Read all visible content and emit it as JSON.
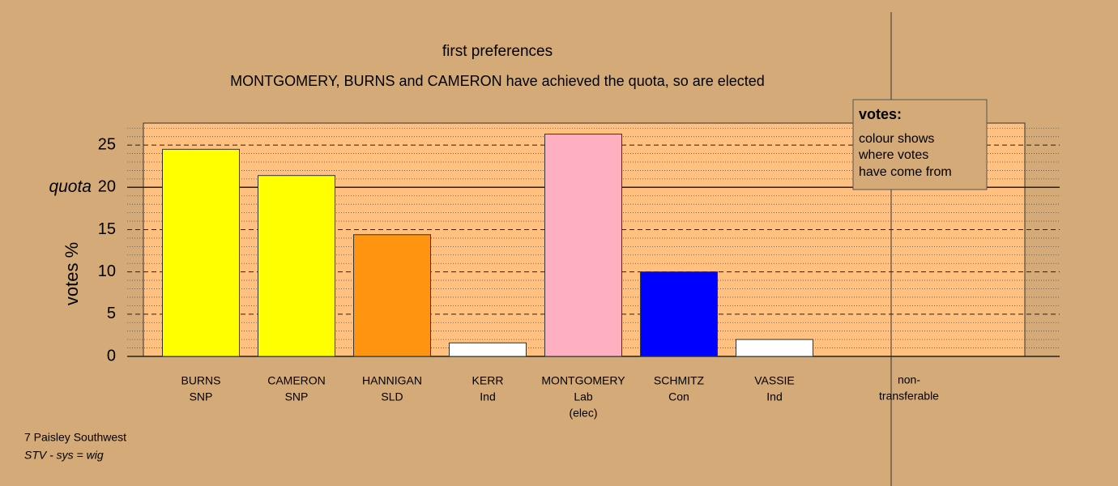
{
  "chart_data": {
    "type": "bar",
    "title": "first preferences",
    "subtitle": "MONTGOMERY, BURNS and CAMERON have achieved the quota, so are elected",
    "y_label": "votes %",
    "categories": [
      "BURNS",
      "CAMERON",
      "HANNIGAN",
      "KERR",
      "MONTGOMERY",
      "SCHMITZ",
      "VASSIE"
    ],
    "parties": [
      "SNP",
      "SNP",
      "SLD",
      "Ind",
      "Lab",
      "Con",
      "Ind"
    ],
    "notes": [
      null,
      null,
      null,
      null,
      "(elec)",
      null,
      null
    ],
    "values": [
      24.5,
      21.4,
      14.4,
      1.6,
      26.3,
      10.0,
      2.0
    ],
    "colors": [
      "#ffff00",
      "#ffff00",
      "#ff9410",
      "#ffffff",
      "#ffb0c0",
      "#0000ff",
      "#ffffff"
    ],
    "nontransferable_label": [
      "non-",
      "transferable"
    ],
    "quota": 20,
    "quota_label": "quota",
    "ylim": [
      0,
      27.6
    ],
    "yticks": [
      0,
      5,
      10,
      15,
      20,
      25
    ],
    "minor_yticks": [
      1,
      2,
      3,
      4,
      6,
      7,
      8,
      9,
      11,
      12,
      13,
      14,
      16,
      17,
      18,
      19,
      21,
      22,
      23,
      24,
      26,
      27
    ],
    "legend": {
      "title": "votes:",
      "lines": [
        "colour shows",
        "where votes",
        "have come from"
      ]
    },
    "footer": [
      "7 Paisley Southwest",
      "STV - sys = wig"
    ]
  }
}
